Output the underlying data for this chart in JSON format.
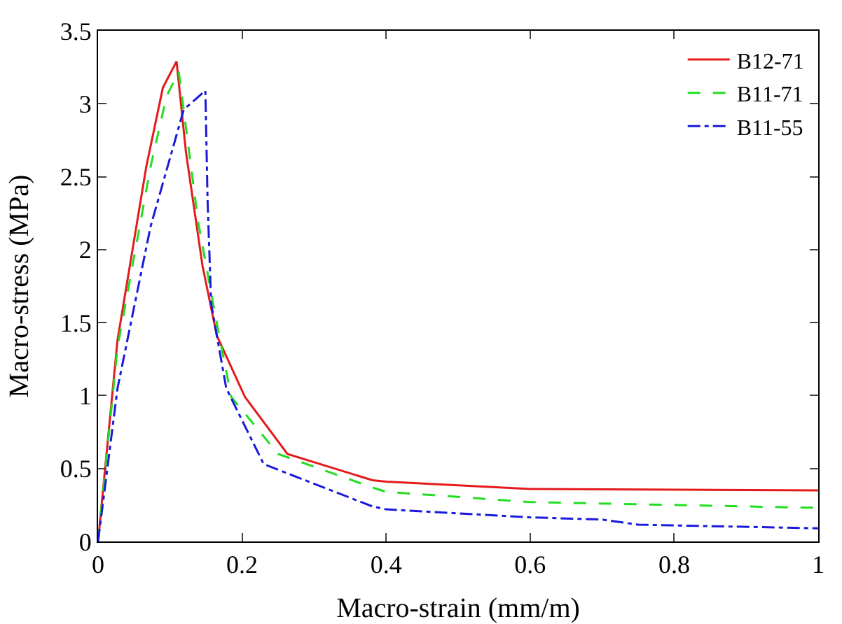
{
  "chart_data": {
    "type": "line",
    "xlabel": "Macro-strain (mm/m)",
    "ylabel": "Macro-stress (MPa)",
    "xlim": [
      0,
      1
    ],
    "ylim": [
      0,
      3.5
    ],
    "xticks": [
      0,
      0.2,
      0.4,
      0.6,
      0.8,
      1
    ],
    "yticks": [
      0,
      0.5,
      1,
      1.5,
      2,
      2.5,
      3,
      3.5
    ],
    "legend": "top right",
    "grid": false,
    "series": [
      {
        "name": "B12-71",
        "color": "#e41a1c",
        "line_style": "solid",
        "x": [
          0,
          0.027,
          0.067,
          0.09,
          0.109,
          0.122,
          0.145,
          0.165,
          0.204,
          0.263,
          0.381,
          0.4,
          0.6,
          1
        ],
        "values": [
          0,
          1.38,
          2.57,
          3.11,
          3.29,
          2.67,
          1.89,
          1.41,
          0.99,
          0.6,
          0.42,
          0.41,
          0.36,
          0.35
        ]
      },
      {
        "name": "B11-71",
        "color": "#22dd22",
        "line_style": "dashed",
        "x": [
          0,
          0.027,
          0.073,
          0.095,
          0.112,
          0.139,
          0.162,
          0.185,
          0.25,
          0.381,
          0.4,
          0.6,
          1
        ],
        "values": [
          0,
          1.33,
          2.57,
          3.05,
          3.22,
          2.19,
          1.57,
          0.99,
          0.6,
          0.37,
          0.34,
          0.27,
          0.23
        ]
      },
      {
        "name": "B11-55",
        "color": "#1a1adc",
        "line_style": "dashdot",
        "x": [
          0,
          0.027,
          0.073,
          0.119,
          0.149,
          0.152,
          0.157,
          0.178,
          0.23,
          0.381,
          0.4,
          0.6,
          0.7,
          0.75,
          1
        ],
        "values": [
          0,
          1.05,
          2.16,
          2.96,
          3.09,
          2.35,
          1.63,
          1.05,
          0.53,
          0.24,
          0.22,
          0.165,
          0.15,
          0.115,
          0.09
        ]
      }
    ]
  }
}
